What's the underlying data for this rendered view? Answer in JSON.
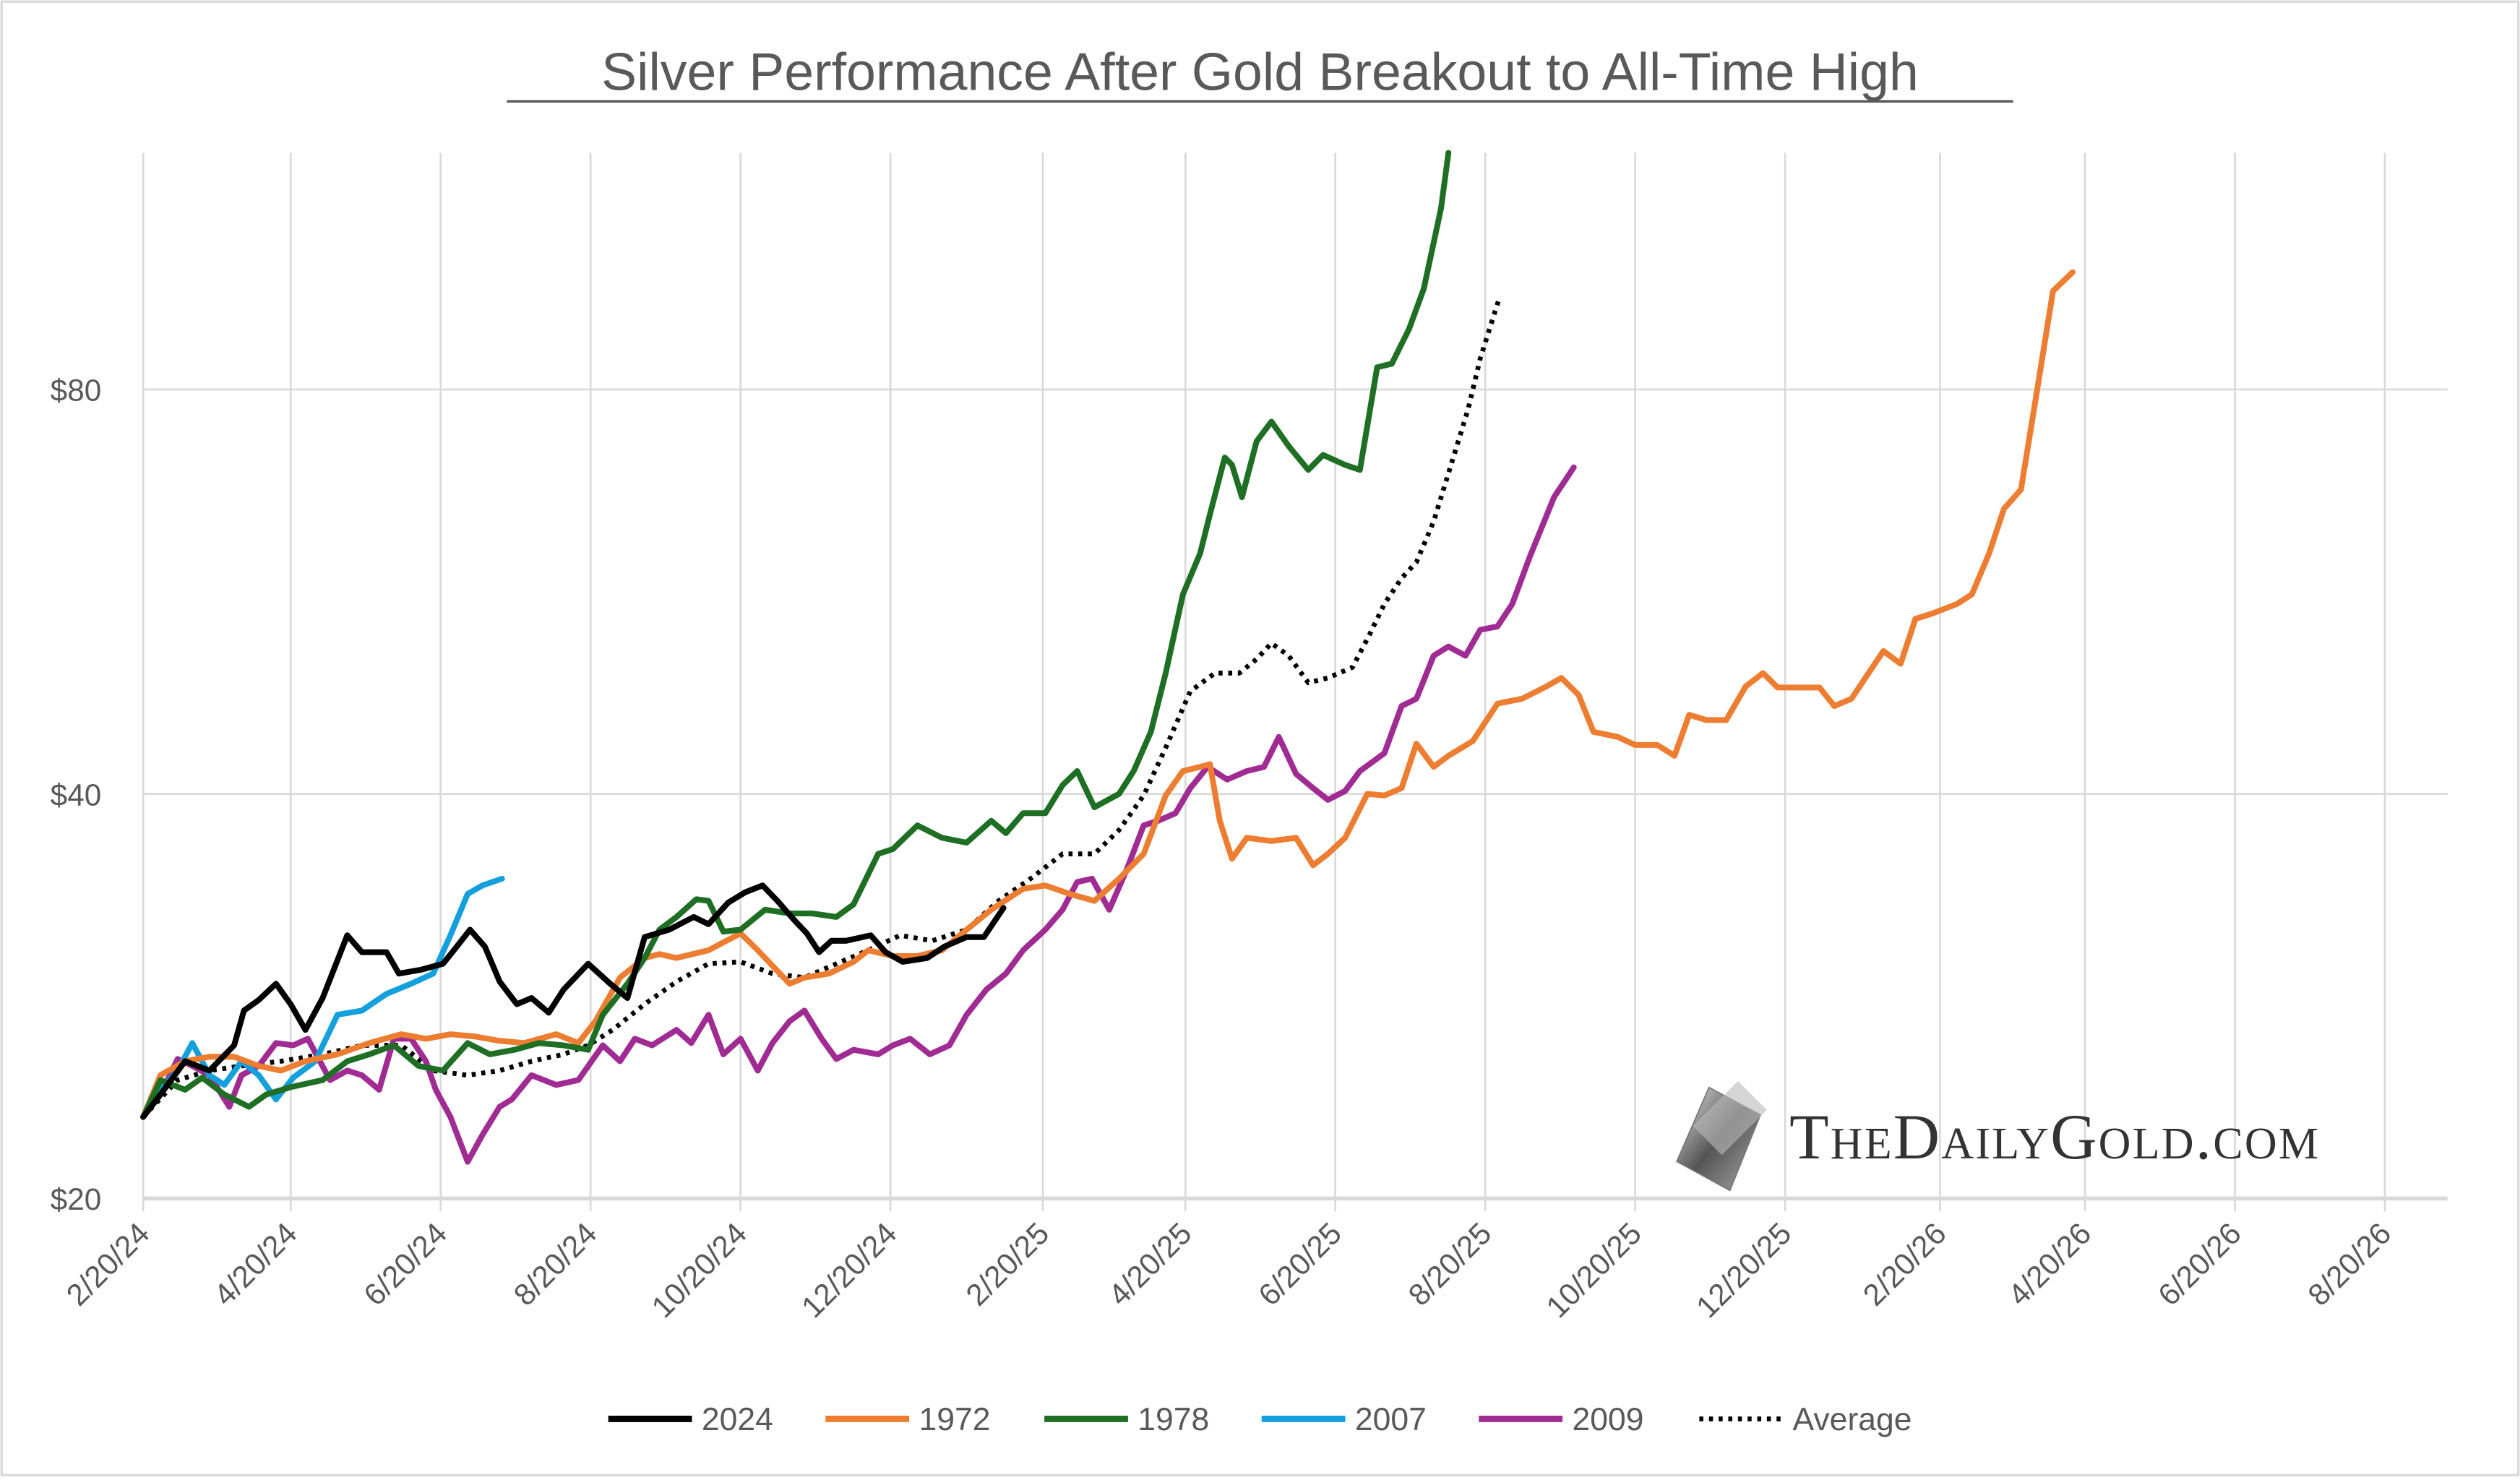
{
  "chart_data": {
    "type": "line",
    "title": "Silver Performance After Gold Breakout to All-Time High",
    "xlabel": "",
    "ylabel": "",
    "x_unit": "days since 2/20/24",
    "y_scale": "log",
    "ylim": [
      20,
      120
    ],
    "grid": true,
    "legend_position": "bottom",
    "y_ticks": [
      {
        "value": 20,
        "label": "$20"
      },
      {
        "value": 40,
        "label": "$40"
      },
      {
        "value": 80,
        "label": "$80"
      }
    ],
    "x_ticks": [
      {
        "value": 0,
        "label": "2/20/24"
      },
      {
        "value": 60,
        "label": "4/20/24"
      },
      {
        "value": 121,
        "label": "6/20/24"
      },
      {
        "value": 182,
        "label": "8/20/24"
      },
      {
        "value": 243,
        "label": "10/20/24"
      },
      {
        "value": 304,
        "label": "12/20/24"
      },
      {
        "value": 366,
        "label": "2/20/25"
      },
      {
        "value": 424,
        "label": "4/20/25"
      },
      {
        "value": 485,
        "label": "6/20/25"
      },
      {
        "value": 546,
        "label": "8/20/25"
      },
      {
        "value": 607,
        "label": "10/20/25"
      },
      {
        "value": 668,
        "label": "12/20/25"
      },
      {
        "value": 731,
        "label": "2/20/26"
      },
      {
        "value": 790,
        "label": "4/20/26"
      },
      {
        "value": 851,
        "label": "6/20/26"
      },
      {
        "value": 912,
        "label": "8/20/26"
      }
    ],
    "xlim": [
      0,
      940
    ],
    "series": [
      {
        "name": "2024",
        "color": "#000000",
        "dash": false,
        "x": [
          0,
          7,
          17,
          27,
          37,
          41,
          47,
          54,
          60,
          66,
          73,
          83,
          89,
          99,
          104,
          113,
          122,
          127,
          133,
          139,
          145,
          152,
          158,
          165,
          171,
          181,
          190,
          197,
          204,
          214,
          224,
          230,
          238,
          245,
          252,
          258,
          265,
          270,
          275,
          280,
          286,
          296,
          302,
          309,
          319,
          326,
          335,
          342,
          350
        ],
        "y": [
          23.0,
          23.9,
          25.3,
          24.9,
          26.0,
          27.6,
          28.1,
          28.9,
          27.9,
          26.7,
          28.2,
          31.4,
          30.5,
          30.5,
          29.4,
          29.6,
          29.9,
          30.7,
          31.7,
          30.8,
          29.0,
          27.9,
          28.2,
          27.5,
          28.6,
          29.9,
          28.9,
          28.2,
          31.3,
          31.7,
          32.4,
          32.0,
          33.2,
          33.8,
          34.2,
          33.3,
          32.2,
          31.5,
          30.5,
          31.1,
          31.1,
          31.4,
          30.5,
          30.0,
          30.2,
          30.8,
          31.3,
          31.3,
          32.9
        ]
      },
      {
        "name": "1972",
        "color": "#ED7D31",
        "dash": false,
        "x": [
          0,
          7,
          17,
          27,
          37,
          47,
          56,
          66,
          79,
          92,
          105,
          115,
          125,
          135,
          145,
          155,
          168,
          177,
          184,
          194,
          204,
          210,
          217,
          230,
          243,
          250,
          256,
          263,
          269,
          279,
          289,
          295,
          305,
          315,
          325,
          335,
          345,
          358,
          367,
          377,
          387,
          397,
          407,
          416,
          423,
          430,
          434,
          438,
          443,
          449,
          459,
          469,
          476,
          482,
          489,
          498,
          505,
          512,
          518,
          525,
          531,
          541,
          551,
          561,
          571,
          577,
          584,
          590,
          600,
          607,
          616,
          623,
          629,
          636,
          644,
          652,
          659,
          665,
          672,
          682,
          688,
          695,
          702,
          708,
          715,
          721,
          728,
          738,
          744,
          751,
          757,
          764,
          770,
          777,
          785
        ],
        "y": [
          23.0,
          24.7,
          25.3,
          25.5,
          25.5,
          25.1,
          24.9,
          25.3,
          25.6,
          26.1,
          26.5,
          26.3,
          26.5,
          26.4,
          26.2,
          26.1,
          26.5,
          26.1,
          27.1,
          29.2,
          30.2,
          30.4,
          30.2,
          30.6,
          31.5,
          30.6,
          29.8,
          28.9,
          29.2,
          29.4,
          30.0,
          30.6,
          30.3,
          30.3,
          30.6,
          31.7,
          32.8,
          34.0,
          34.2,
          33.7,
          33.3,
          34.6,
          36.1,
          39.9,
          41.6,
          41.9,
          42.1,
          38.2,
          35.8,
          37.1,
          36.9,
          37.1,
          35.4,
          36.1,
          37.1,
          40.0,
          39.9,
          40.4,
          43.6,
          41.9,
          42.7,
          43.8,
          46.7,
          47.1,
          48.1,
          48.8,
          47.4,
          44.5,
          44.1,
          43.5,
          43.5,
          42.7,
          45.8,
          45.4,
          45.4,
          48.1,
          49.2,
          48.0,
          48.0,
          48.0,
          46.5,
          47.1,
          49.2,
          51.1,
          50.0,
          54.0,
          54.5,
          55.4,
          56.3,
          60.4,
          65.2,
          67.4,
          78.8,
          94.7,
          97.8
        ]
      },
      {
        "name": "1978",
        "color": "#1E6F24",
        "dash": false,
        "x": [
          0,
          7,
          17,
          24,
          33,
          43,
          50,
          60,
          73,
          83,
          92,
          102,
          112,
          122,
          132,
          141,
          151,
          161,
          171,
          181,
          187,
          197,
          204,
          210,
          217,
          225,
          230,
          236,
          243,
          253,
          263,
          272,
          282,
          289,
          299,
          305,
          315,
          325,
          335,
          345,
          351,
          358,
          367,
          374,
          380,
          387,
          397,
          403,
          410,
          416,
          423,
          430,
          434,
          440,
          443,
          447,
          453,
          459,
          466,
          474,
          480,
          489,
          495,
          502,
          508,
          515,
          521,
          528,
          531
        ],
        "y": [
          23.0,
          24.5,
          24.1,
          24.6,
          23.9,
          23.4,
          23.9,
          24.2,
          24.5,
          25.3,
          25.6,
          26.0,
          25.1,
          24.9,
          26.1,
          25.6,
          25.8,
          26.1,
          26.0,
          25.8,
          27.4,
          28.9,
          30.2,
          31.7,
          32.4,
          33.4,
          33.3,
          31.6,
          31.7,
          32.8,
          32.6,
          32.6,
          32.4,
          33.1,
          36.1,
          36.4,
          37.9,
          37.1,
          36.8,
          38.2,
          37.4,
          38.7,
          38.7,
          40.6,
          41.6,
          39.1,
          40.0,
          41.6,
          44.5,
          49.2,
          56.3,
          60.4,
          64.6,
          71.2,
          70.3,
          66.5,
          73.2,
          75.7,
          72.6,
          69.7,
          71.5,
          70.3,
          69.7,
          83.1,
          83.6,
          88.7,
          95.1,
          109.1,
          120.0
        ]
      },
      {
        "name": "2007",
        "color": "#13A0DC",
        "dash": false,
        "x": [
          0,
          7,
          14,
          20,
          27,
          33,
          40,
          47,
          54,
          61,
          70,
          79,
          89,
          99,
          109,
          118,
          125,
          132,
          138,
          146
        ],
        "y": [
          23.0,
          24.1,
          24.9,
          26.1,
          24.7,
          24.3,
          25.3,
          24.7,
          23.7,
          24.6,
          25.3,
          27.4,
          27.6,
          28.4,
          28.9,
          29.4,
          31.4,
          33.7,
          34.2,
          34.6
        ]
      },
      {
        "name": "2009",
        "color": "#A02B93",
        "dash": false,
        "x": [
          0,
          7,
          14,
          20,
          27,
          35,
          40,
          47,
          54,
          61,
          67,
          76,
          83,
          89,
          96,
          102,
          109,
          115,
          119,
          125,
          132,
          138,
          145,
          150,
          158,
          168,
          177,
          187,
          194,
          200,
          207,
          217,
          223,
          230,
          236,
          243,
          250,
          256,
          263,
          269,
          276,
          282,
          289,
          299,
          305,
          312,
          320,
          328,
          335,
          343,
          351,
          358,
          367,
          374,
          380,
          386,
          393,
          400,
          407,
          413,
          420,
          426,
          433,
          441,
          449,
          456,
          462,
          469,
          476,
          482,
          489,
          495,
          505,
          512,
          518,
          525,
          531,
          538,
          544,
          551,
          557,
          564,
          574,
          582
        ],
        "y": [
          23.0,
          23.9,
          25.4,
          25.1,
          24.7,
          23.4,
          24.7,
          25.1,
          26.1,
          26.0,
          26.3,
          24.5,
          24.9,
          24.7,
          24.1,
          26.3,
          26.3,
          25.3,
          24.1,
          23.0,
          21.3,
          22.3,
          23.4,
          23.7,
          24.7,
          24.3,
          24.5,
          26.0,
          25.3,
          26.3,
          26.0,
          26.7,
          26.1,
          27.4,
          25.6,
          26.3,
          24.9,
          26.1,
          27.1,
          27.6,
          26.3,
          25.4,
          25.8,
          25.6,
          26.0,
          26.3,
          25.6,
          26.0,
          27.4,
          28.6,
          29.4,
          30.6,
          31.7,
          32.8,
          34.4,
          34.6,
          32.8,
          35.1,
          37.9,
          38.2,
          38.7,
          40.4,
          41.9,
          41.0,
          41.6,
          41.9,
          44.1,
          41.4,
          40.4,
          39.6,
          40.2,
          41.6,
          42.9,
          46.5,
          47.1,
          50.7,
          51.5,
          50.7,
          53.0,
          53.3,
          55.4,
          60.0,
          66.5,
          70.0
        ]
      },
      {
        "name": "Average",
        "color": "#000000",
        "dash": true,
        "x": [
          0,
          14,
          27,
          40,
          56,
          73,
          89,
          105,
          118,
          132,
          145,
          158,
          171,
          181,
          191,
          204,
          217,
          230,
          243,
          256,
          269,
          282,
          295,
          308,
          321,
          335,
          348,
          361,
          374,
          387,
          397,
          407,
          416,
          426,
          436,
          446,
          453,
          459,
          466,
          474,
          482,
          492,
          499,
          505,
          512,
          518,
          525,
          531,
          539,
          544,
          552
        ],
        "y": [
          23.0,
          24.5,
          24.9,
          25.1,
          25.3,
          25.6,
          26.0,
          26.0,
          24.9,
          24.7,
          24.9,
          25.3,
          25.6,
          26.0,
          26.7,
          27.9,
          29.0,
          29.9,
          30.0,
          29.4,
          29.2,
          29.9,
          30.6,
          31.4,
          31.1,
          31.7,
          33.3,
          34.6,
          36.1,
          36.1,
          37.6,
          39.9,
          43.3,
          47.7,
          49.2,
          49.2,
          50.4,
          51.8,
          50.7,
          48.4,
          48.8,
          49.7,
          52.6,
          55.4,
          57.9,
          59.5,
          63.8,
          69.3,
          77.3,
          84.4,
          93.9
        ]
      }
    ]
  },
  "logo": {
    "text": "TheDailyGold.com"
  }
}
